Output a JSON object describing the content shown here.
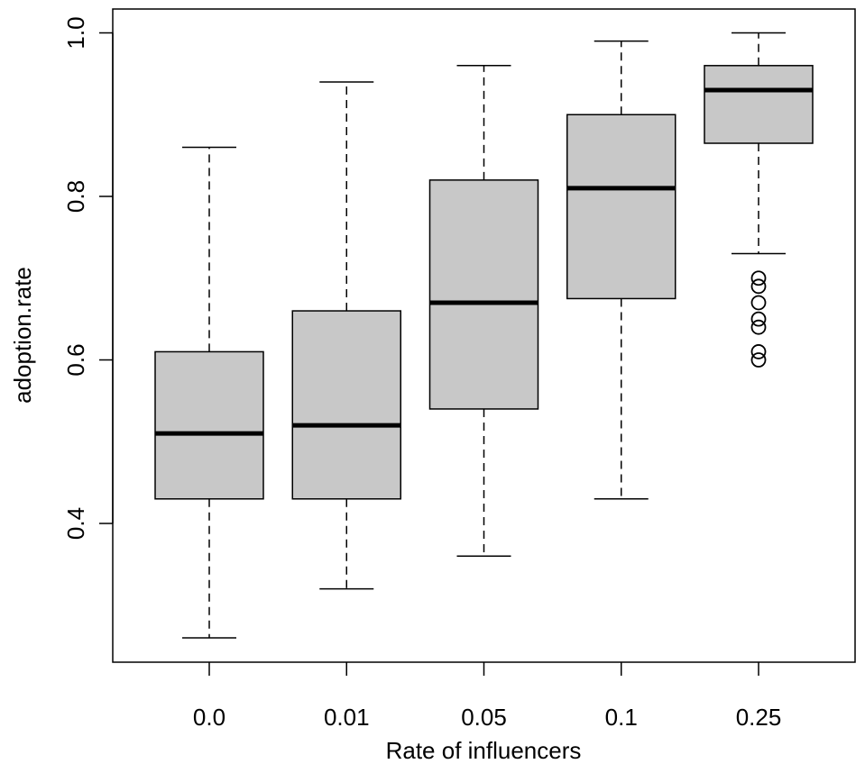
{
  "chart_data": {
    "type": "boxplot",
    "title": "",
    "xlabel": "Rate of influencers",
    "ylabel": "adoption.rate",
    "ylim": [
      0.225,
      1.025
    ],
    "yticks": [
      0.4,
      0.6,
      0.8,
      1.0
    ],
    "ytick_labels": [
      "0.4",
      "0.6",
      "0.8",
      "1.0"
    ],
    "categories": [
      "0.0",
      "0.01",
      "0.05",
      "0.1",
      "0.25"
    ],
    "box_color": "#c8c8c8",
    "boxes": [
      {
        "whisker_low": 0.26,
        "q1": 0.43,
        "median": 0.51,
        "q3": 0.61,
        "whisker_high": 0.86,
        "outliers": []
      },
      {
        "whisker_low": 0.32,
        "q1": 0.43,
        "median": 0.52,
        "q3": 0.66,
        "whisker_high": 0.94,
        "outliers": []
      },
      {
        "whisker_low": 0.36,
        "q1": 0.54,
        "median": 0.67,
        "q3": 0.82,
        "whisker_high": 0.96,
        "outliers": []
      },
      {
        "whisker_low": 0.43,
        "q1": 0.675,
        "median": 0.81,
        "q3": 0.9,
        "whisker_high": 0.99,
        "outliers": []
      },
      {
        "whisker_low": 0.73,
        "q1": 0.865,
        "median": 0.93,
        "q3": 0.96,
        "whisker_high": 1.0,
        "outliers": [
          0.7,
          0.69,
          0.67,
          0.65,
          0.64,
          0.61,
          0.6
        ]
      }
    ]
  }
}
